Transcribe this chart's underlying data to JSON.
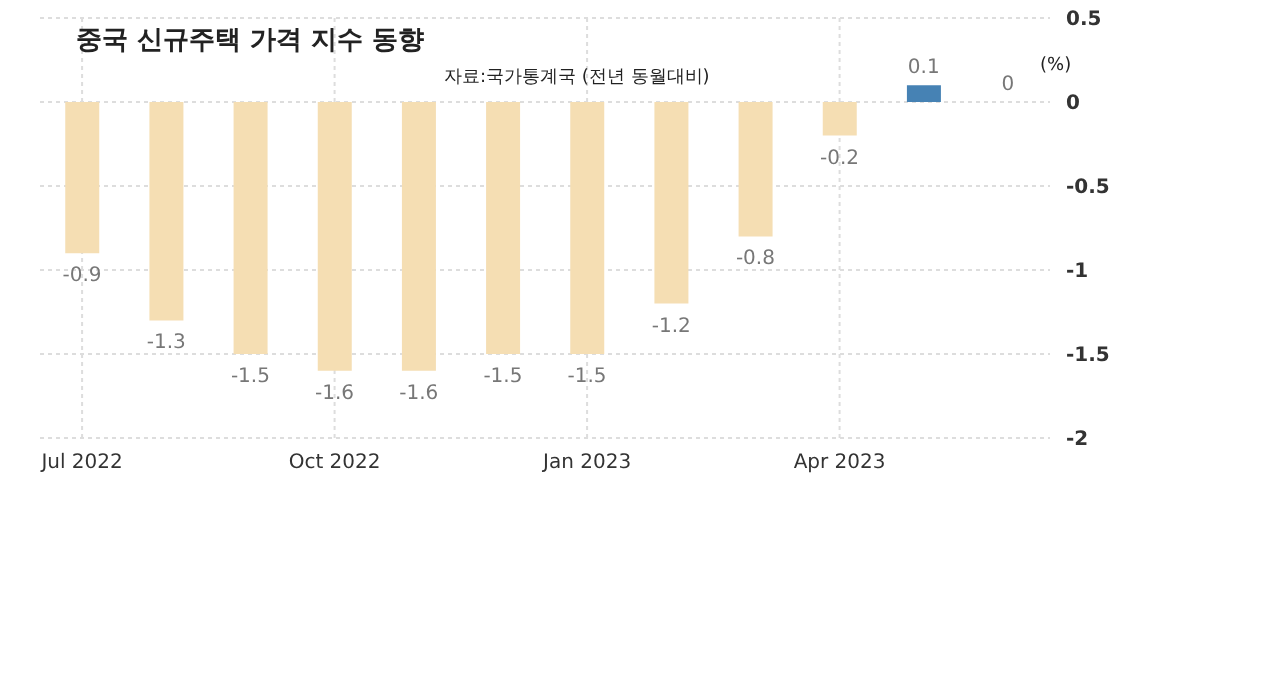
{
  "chart_data": {
    "type": "bar",
    "title": "중국 신규주택 가격 지수 동향",
    "subtitle": "자료:국가통계국 (전년 동월대비)",
    "ylabel": "(%)",
    "categories": [
      "Jul 2022",
      null,
      null,
      "Oct 2022",
      null,
      null,
      "Jan 2023",
      null,
      null,
      "Apr 2023",
      null,
      null
    ],
    "values": [
      -0.9,
      -1.3,
      -1.5,
      -1.6,
      -1.6,
      -1.5,
      -1.5,
      -1.2,
      -0.8,
      -0.2,
      0.1,
      0
    ],
    "colors": [
      "#f5deb3",
      "#f5deb3",
      "#f5deb3",
      "#f5deb3",
      "#f5deb3",
      "#f5deb3",
      "#f5deb3",
      "#f5deb3",
      "#f5deb3",
      "#f5deb3",
      "#4682b4",
      "#f5deb3"
    ],
    "ylim": [
      -2,
      0.5
    ],
    "yticks": [
      0.5,
      0,
      -0.5,
      -1,
      -1.5,
      -2
    ],
    "grid": true,
    "data_labels": true
  }
}
